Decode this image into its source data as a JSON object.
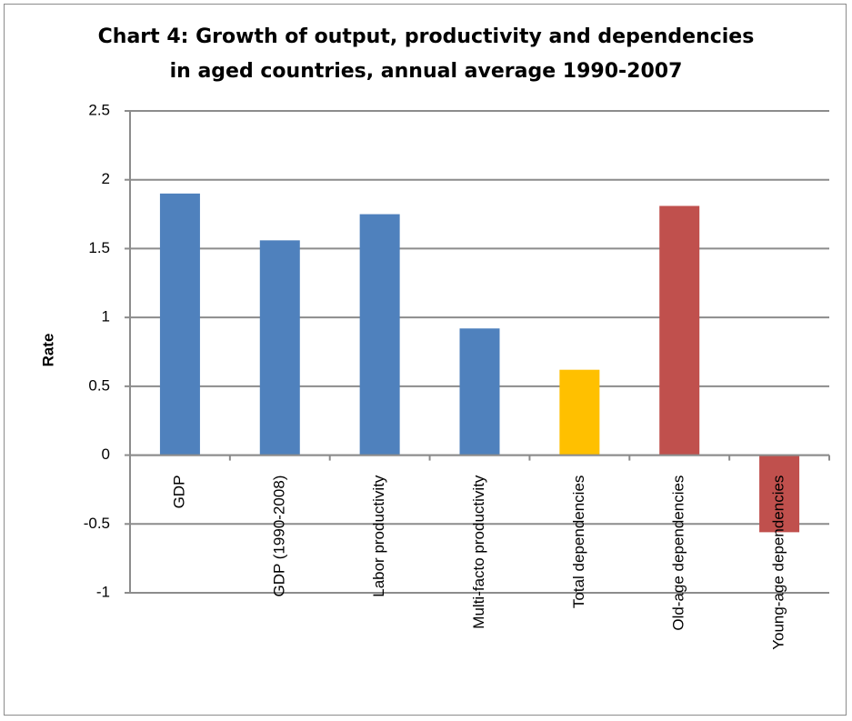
{
  "chart_data": {
    "type": "bar",
    "title_line1": "Chart 4: Growth of output, productivity and dependencies",
    "title_line2": "in aged countries, annual average 1990-2007",
    "ylabel": "Rate",
    "ylim": [
      -1,
      2.5
    ],
    "ytick_step": 0.5,
    "yticks": [
      "2.5",
      "2",
      "1.5",
      "1",
      "0.5",
      "0",
      "-0.5",
      "-1"
    ],
    "grid": true,
    "categories": [
      "GDP",
      "GDP (1990-2008)",
      "Labor productivity",
      "Multi-facto productivity",
      "Total dependencies",
      "Old-age dependencies",
      "Young-age dependencies"
    ],
    "values": [
      1.9,
      1.56,
      1.75,
      0.92,
      0.62,
      1.81,
      -0.56
    ],
    "colors": [
      "#4f81bd",
      "#4f81bd",
      "#4f81bd",
      "#4f81bd",
      "#ffc000",
      "#c0504d",
      "#c0504d"
    ]
  }
}
